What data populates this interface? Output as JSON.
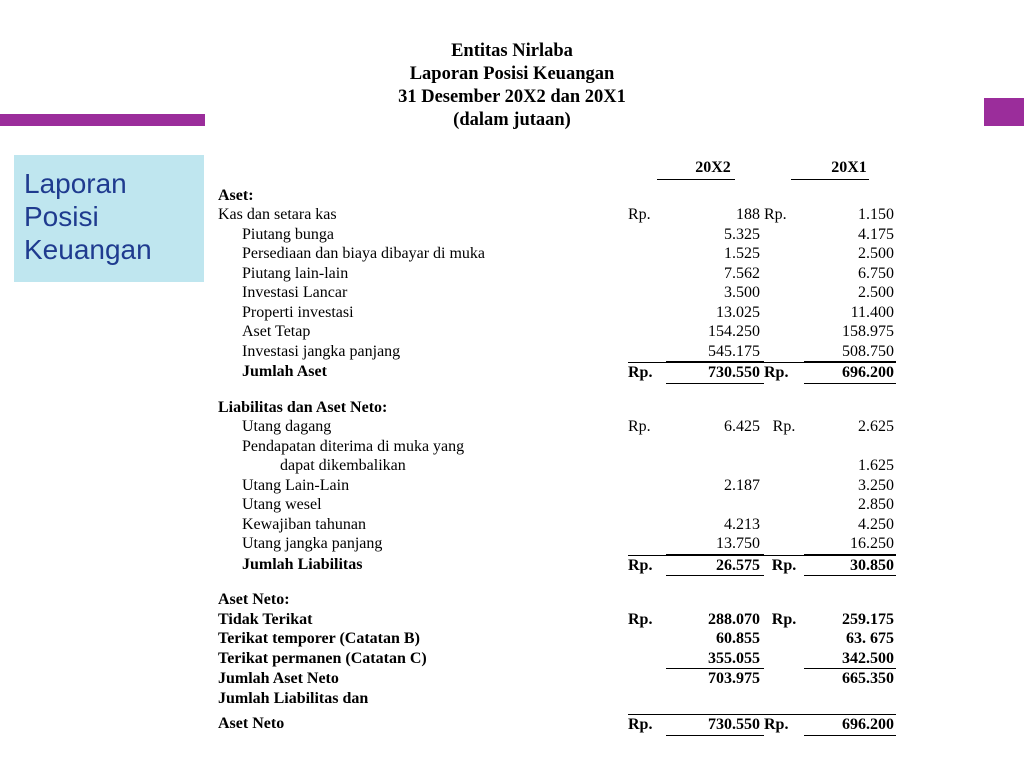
{
  "colors": {
    "accent": "#9b2d9b",
    "sidebar_bg": "#bfe6ef",
    "sidebar_text": "#1f3b8f",
    "text": "#000000",
    "background": "#ffffff"
  },
  "typography": {
    "body_font": "Times New Roman",
    "sidebar_font": "Arial",
    "body_size_pt": 12,
    "header_size_pt": 14,
    "sidebar_size_pt": 21
  },
  "sidebar": {
    "title_line1": "Laporan",
    "title_line2": "Posisi",
    "title_line3": "Keuangan"
  },
  "header": {
    "line1": "Entitas Nirlaba",
    "line2": "Laporan Posisi Keuangan",
    "line3": "31 Desember 20X2 dan 20X1",
    "line4": "(dalam jutaan)"
  },
  "columns": {
    "y2": "20X2",
    "y1": "20X1"
  },
  "currency": "Rp.",
  "sections": {
    "aset": {
      "title": "Aset:",
      "rows": [
        {
          "label": "Kas dan setara kas",
          "rp": true,
          "v2": "188",
          "rp2": true,
          "v1": "1.150"
        },
        {
          "label": "Piutang bunga",
          "v2": "5.325",
          "v1": "4.175"
        },
        {
          "label": "Persediaan dan biaya dibayar di muka",
          "v2": "1.525",
          "v1": "2.500"
        },
        {
          "label": "Piutang lain-lain",
          "v2": "7.562",
          "v1": "6.750"
        },
        {
          "label": "Investasi Lancar",
          "v2": "3.500",
          "v1": "2.500"
        },
        {
          "label": "Properti investasi",
          "v2": "13.025",
          "v1": "11.400"
        },
        {
          "label": "Aset Tetap",
          "v2": "154.250",
          "v1": "158.975"
        },
        {
          "label": "Investasi jangka panjang",
          "v2": "545.175",
          "v1": "508.750",
          "underline": true
        }
      ],
      "total": {
        "label": "Jumlah Aset",
        "rp": true,
        "v2": "730.550",
        "rp2": true,
        "v1": "696.200",
        "rp2_tight": "Rp."
      }
    },
    "liab": {
      "title": "Liabilitas dan Aset Neto:",
      "rows": [
        {
          "label": "Utang dagang",
          "rp": true,
          "v2": "6.425",
          "rp2": true,
          "v1": "2.625"
        },
        {
          "label": "Pendapatan diterima di muka yang",
          "v2": "",
          "v1": ""
        },
        {
          "label2": "dapat dikembalikan",
          "v2": "",
          "v1": "1.625"
        },
        {
          "label": "Utang Lain-Lain",
          "v2": "2.187",
          "v1": "3.250"
        },
        {
          "label": "Utang wesel",
          "v2": "",
          "v1": "2.850"
        },
        {
          "label": "Kewajiban tahunan",
          "v2": "4.213",
          "v1": "4.250"
        },
        {
          "label": "Utang jangka panjang",
          "v2": "13.750",
          "v1": "16.250",
          "underline": true
        }
      ],
      "total": {
        "label": "Jumlah Liabilitas",
        "rp": true,
        "v2": "26.575",
        "rp2": true,
        "v1": "30.850"
      }
    },
    "neto": {
      "title": "Aset Neto:",
      "rows": [
        {
          "label": "Tidak Terikat",
          "bold": true,
          "rp": true,
          "v2": "288.070",
          "rp2": true,
          "v1": "259.175"
        },
        {
          "label": "Terikat temporer (Catatan B)",
          "bold": true,
          "v2": "60.855",
          "v1": "63. 675"
        },
        {
          "label": "Terikat permanen (Catatan C)",
          "bold": true,
          "v2": "355.055",
          "v1": "342.500",
          "underline": true
        }
      ],
      "subtotal": {
        "label": "Jumlah Aset Neto",
        "v2": "703.975",
        "v1": "665.350"
      },
      "footer1": "Jumlah Liabilitas dan",
      "footer2": "Aset Neto",
      "grand": {
        "rp": true,
        "v2": "730.550",
        "rp2_tight": "Rp.",
        "v1": "696.200"
      }
    }
  }
}
